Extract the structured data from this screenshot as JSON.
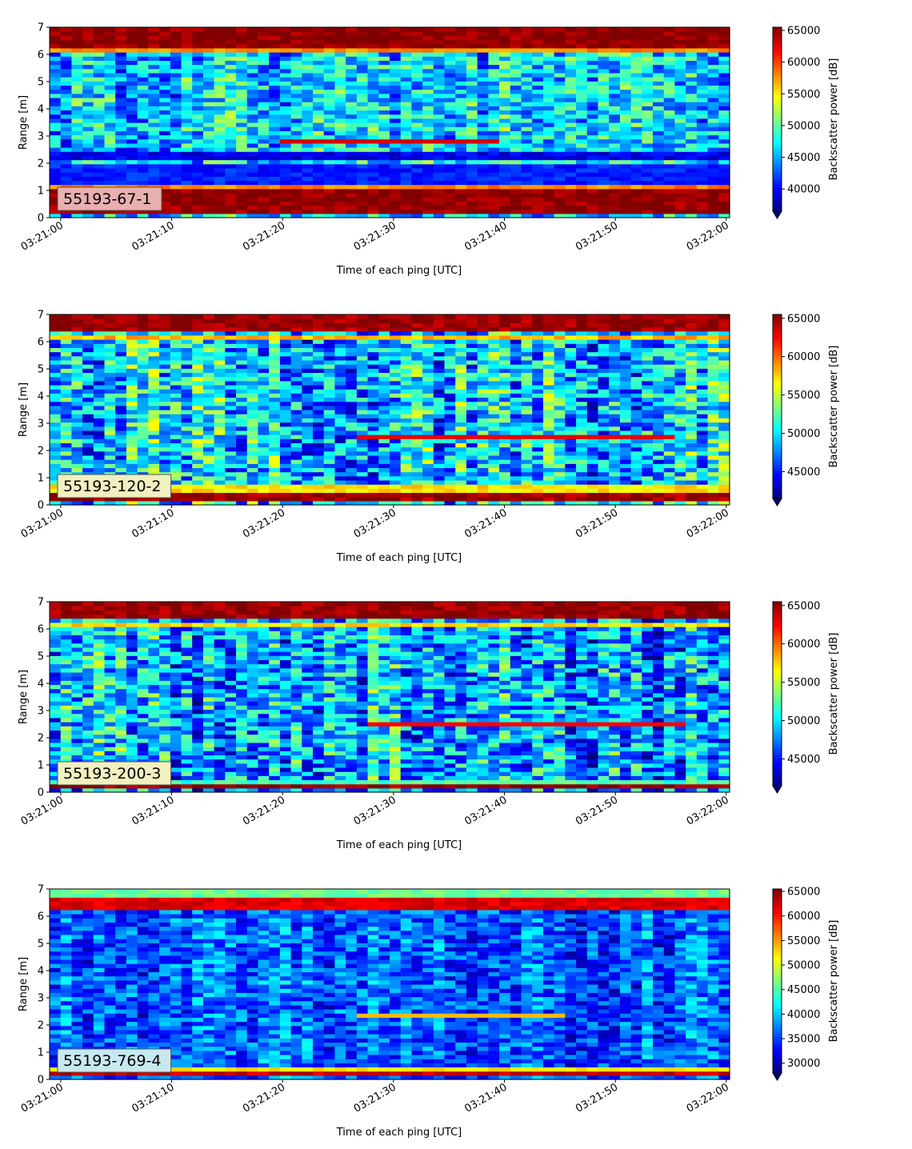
{
  "colormap": "jet",
  "chart_data": [
    {
      "type": "heatmap",
      "label": "55193-67-1",
      "xlabel": "Time of each ping [UTC]",
      "ylabel": "Range [m]",
      "xlim": [
        "03:21:00",
        "03:22:00"
      ],
      "ylim": [
        0,
        7
      ],
      "x_ticks": [
        "03:21:00",
        "03:21:10",
        "03:21:20",
        "03:21:30",
        "03:21:40",
        "03:21:50",
        "03:22:00"
      ],
      "y_ticks": [
        0,
        1,
        2,
        3,
        4,
        5,
        6,
        7
      ],
      "colorbar": {
        "label": "Backscatter power [dB]",
        "min": 36500,
        "max": 65500,
        "ticks": [
          40000,
          45000,
          50000,
          55000,
          60000,
          65000
        ],
        "extend": "min"
      },
      "label_box_color": "#e8b0b0",
      "bands": [
        {
          "range": [
            0.2,
            1.0
          ],
          "value": 65000
        },
        {
          "range": [
            1.0,
            1.2
          ],
          "value": 58000
        },
        {
          "range": [
            1.2,
            2.0
          ],
          "value": 41000
        },
        {
          "range": [
            2.2,
            2.5
          ],
          "value": 39500
        },
        {
          "range": [
            6.1,
            6.3
          ],
          "value": 58000
        },
        {
          "range": [
            6.3,
            7.0
          ],
          "value": 65000
        }
      ],
      "background_mean": 46000,
      "feature": {
        "time_range": [
          "03:21:20",
          "03:21:40"
        ],
        "range": [
          2.7,
          2.9
        ],
        "value": 63000
      }
    },
    {
      "type": "heatmap",
      "label": "55193-120-2",
      "xlabel": "Time of each ping [UTC]",
      "ylabel": "Range [m]",
      "xlim": [
        "03:21:00",
        "03:22:00"
      ],
      "ylim": [
        0,
        7
      ],
      "x_ticks": [
        "03:21:00",
        "03:21:10",
        "03:21:20",
        "03:21:30",
        "03:21:40",
        "03:21:50",
        "03:22:00"
      ],
      "y_ticks": [
        0,
        1,
        2,
        3,
        4,
        5,
        6,
        7
      ],
      "colorbar": {
        "label": "Backscatter power [dB]",
        "min": 41500,
        "max": 65500,
        "ticks": [
          45000,
          50000,
          55000,
          60000,
          65000
        ],
        "extend": "min"
      },
      "label_box_color": "#f0f0c0",
      "bands": [
        {
          "range": [
            0.1,
            0.5
          ],
          "value": 65000
        },
        {
          "range": [
            0.5,
            0.7
          ],
          "value": 57000
        },
        {
          "range": [
            6.1,
            6.3
          ],
          "value": 58000
        },
        {
          "range": [
            6.4,
            7.0
          ],
          "value": 65000
        }
      ],
      "background_mean": 49500,
      "feature": {
        "time_range": [
          "03:21:27",
          "03:21:55"
        ],
        "range": [
          2.45,
          2.65
        ],
        "value": 63000
      }
    },
    {
      "type": "heatmap",
      "label": "55193-200-3",
      "xlabel": "Time of each ping [UTC]",
      "ylabel": "Range [m]",
      "xlim": [
        "03:21:00",
        "03:22:00"
      ],
      "ylim": [
        0,
        7
      ],
      "x_ticks": [
        "03:21:00",
        "03:21:10",
        "03:21:20",
        "03:21:30",
        "03:21:40",
        "03:21:50",
        "03:22:00"
      ],
      "y_ticks": [
        0,
        1,
        2,
        3,
        4,
        5,
        6,
        7
      ],
      "colorbar": {
        "label": "Backscatter power [dB]",
        "min": 41500,
        "max": 65500,
        "ticks": [
          45000,
          50000,
          55000,
          60000,
          65000
        ],
        "extend": "min"
      },
      "label_box_color": "#f0f0c0",
      "bands": [
        {
          "range": [
            0.15,
            0.35
          ],
          "value": 65000
        },
        {
          "range": [
            0.35,
            0.5
          ],
          "value": 52000
        },
        {
          "range": [
            6.4,
            7.0
          ],
          "value": 65000
        },
        {
          "range": [
            6.1,
            6.3
          ],
          "value": 57000
        }
      ],
      "background_mean": 48500,
      "feature": {
        "time_range": [
          "03:21:28",
          "03:21:56"
        ],
        "range": [
          2.4,
          2.6
        ],
        "value": 62500
      }
    },
    {
      "type": "heatmap",
      "label": "55193-769-4",
      "xlabel": "Time of each ping [UTC]",
      "ylabel": "Range [m]",
      "xlim": [
        "03:21:00",
        "03:22:00"
      ],
      "ylim": [
        0,
        7
      ],
      "x_ticks": [
        "03:21:00",
        "03:21:10",
        "03:21:20",
        "03:21:30",
        "03:21:40",
        "03:21:50",
        "03:22:00"
      ],
      "y_ticks": [
        0,
        1,
        2,
        3,
        4,
        5,
        6,
        7
      ],
      "colorbar": {
        "label": "Backscatter power [dB]",
        "min": 28000,
        "max": 65500,
        "ticks": [
          30000,
          35000,
          40000,
          45000,
          50000,
          55000,
          60000,
          65000
        ],
        "extend": "min"
      },
      "label_box_color": "#c8e8f0",
      "bands": [
        {
          "range": [
            0.15,
            0.3
          ],
          "value": 63000
        },
        {
          "range": [
            0.3,
            0.45
          ],
          "value": 52000
        },
        {
          "range": [
            6.3,
            6.7
          ],
          "value": 62000
        },
        {
          "range": [
            6.7,
            7.0
          ],
          "value": 46000
        }
      ],
      "background_mean": 36000,
      "feature": {
        "time_range": [
          "03:21:27",
          "03:21:45"
        ],
        "range": [
          2.35,
          2.5
        ],
        "value": 54000
      }
    }
  ]
}
